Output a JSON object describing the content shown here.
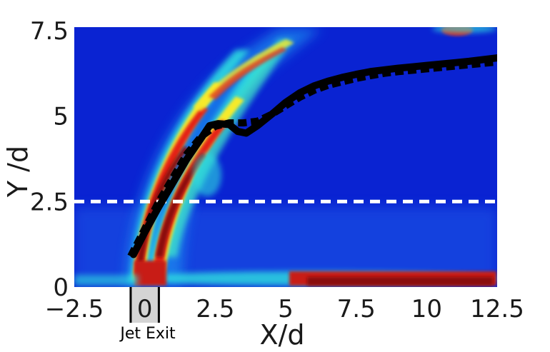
{
  "chart_data": {
    "type": "heatmap",
    "title": "",
    "xlabel": "X/d",
    "ylabel": "Y /d",
    "xlim": [
      -2.5,
      12.5
    ],
    "ylim": [
      0,
      7.6
    ],
    "x_ticks": [
      "−2.5",
      "0",
      "2.5",
      "5",
      "7.5",
      "10",
      "12.5"
    ],
    "x_tick_values": [
      -2.5,
      0,
      2.5,
      5,
      7.5,
      10,
      12.5
    ],
    "y_ticks": [
      "0",
      "2.5",
      "5",
      "7.5"
    ],
    "y_tick_values": [
      0,
      2.5,
      5,
      7.5
    ],
    "colormap": "jet",
    "annotations": {
      "jet_exit_label": "Jet Exit",
      "jet_exit_range": [
        -0.5,
        0.5
      ],
      "reference_line_y": 2.5
    },
    "series": [
      {
        "style": "solid",
        "color": "#000000",
        "x": [
          -0.4,
          0,
          0.5,
          1,
          1.5,
          2,
          2.3,
          2.6,
          3,
          3.3,
          3.6,
          4,
          4.5,
          5,
          5.5,
          6,
          6.5,
          7,
          7.5,
          8,
          8.5,
          9,
          9.5,
          10,
          10.5,
          11,
          11.5,
          12,
          12.5
        ],
        "y": [
          0.95,
          1.6,
          2.35,
          3.05,
          3.75,
          4.35,
          4.72,
          4.78,
          4.75,
          4.55,
          4.5,
          4.72,
          5.05,
          5.4,
          5.68,
          5.88,
          6.02,
          6.13,
          6.22,
          6.3,
          6.35,
          6.4,
          6.44,
          6.48,
          6.52,
          6.56,
          6.6,
          6.65,
          6.7
        ]
      },
      {
        "style": "dashed",
        "color": "#000000",
        "x": [
          -0.5,
          0,
          0.5,
          1,
          1.5,
          2,
          2.5,
          3,
          3.5,
          4,
          4.5,
          5,
          5.5,
          6,
          6.5,
          7,
          7.5,
          8,
          8.5,
          9,
          9.5,
          10,
          10.5,
          11,
          11.5,
          12,
          12.5
        ],
        "y": [
          0.9,
          1.7,
          2.5,
          3.2,
          3.9,
          4.4,
          4.7,
          4.8,
          4.8,
          4.85,
          5.05,
          5.3,
          5.55,
          5.75,
          5.9,
          6.0,
          6.1,
          6.18,
          6.25,
          6.3,
          6.34,
          6.38,
          6.42,
          6.46,
          6.5,
          6.54,
          6.58
        ]
      }
    ]
  }
}
